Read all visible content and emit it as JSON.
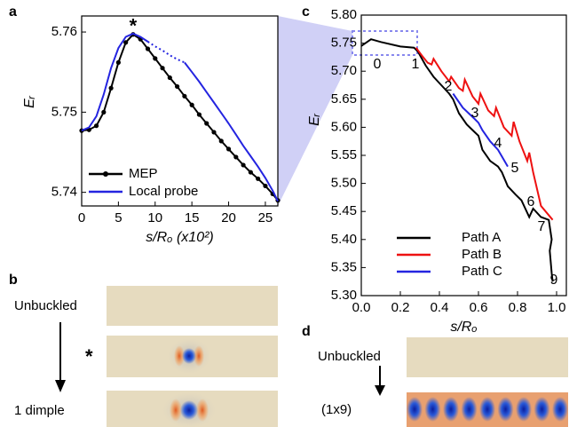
{
  "chart_data": [
    {
      "type": "line",
      "panel_label": "a",
      "xlabel": "s/Rₒ (x10²)",
      "ylabel": "Eᵣ",
      "annotation": "*",
      "xlim": [
        0,
        26.7
      ],
      "ylim": [
        5.7383,
        5.762
      ],
      "xticks": [
        0,
        5,
        10,
        15,
        20,
        25
      ],
      "yticks": [
        5.74,
        5.75,
        5.76
      ],
      "legend": "lower left",
      "x": [
        0,
        1,
        2,
        3,
        4,
        5,
        6,
        7,
        8,
        9,
        10,
        11,
        12,
        13,
        14,
        15,
        16,
        17,
        18,
        19,
        20,
        21,
        22,
        23,
        24,
        25,
        26,
        26.7
      ],
      "series": [
        {
          "name": "MEP",
          "color": "#000000",
          "marker": true,
          "values": [
            5.7477,
            5.7478,
            5.7483,
            5.75,
            5.753,
            5.7562,
            5.7587,
            5.7597,
            5.7591,
            5.7579,
            5.7567,
            5.7555,
            5.7543,
            5.7532,
            5.752,
            5.7509,
            5.7497,
            5.7486,
            5.7475,
            5.7464,
            5.7454,
            5.7444,
            5.7434,
            5.7425,
            5.7417,
            5.7408,
            5.7398,
            5.739
          ]
        },
        {
          "name": "Local probe",
          "color": "#2424e0",
          "values": [
            5.7477,
            5.7481,
            5.7495,
            5.7522,
            5.7555,
            5.758,
            5.7594,
            5.7598,
            5.7594,
            5.7588,
            null,
            null,
            null,
            null,
            5.7562,
            5.755,
            5.7538,
            5.7525,
            5.7512,
            5.7499,
            5.7486,
            5.7472,
            5.7458,
            5.7445,
            5.7432,
            5.7418,
            5.7402,
            5.7389
          ]
        },
        {
          "color": "#2424e0",
          "dash": "dotted",
          "values": [
            null,
            null,
            null,
            null,
            null,
            null,
            null,
            null,
            null,
            5.7588,
            5.7582,
            5.7577,
            5.7571,
            5.7566,
            5.7562,
            null,
            null,
            null,
            null,
            null,
            null,
            null,
            null,
            null,
            null,
            null,
            null,
            null
          ]
        }
      ]
    },
    {
      "type": "line",
      "panel_label": "c",
      "xlabel": "s/Rₒ",
      "ylabel": "Eᵣ",
      "xlim": [
        0,
        1.05
      ],
      "ylim": [
        5.3,
        5.8
      ],
      "xticks": [
        {
          "value": 0,
          "label": "0.0"
        },
        0.2,
        0.4,
        0.6,
        0.8,
        {
          "value": 1,
          "label": "1.0"
        }
      ],
      "yticks": [
        {
          "value": 5.3,
          "label": "5.30"
        },
        5.35,
        {
          "value": 5.4,
          "label": "5.40"
        },
        5.45,
        {
          "value": 5.5,
          "label": "5.50"
        },
        5.55,
        {
          "value": 5.6,
          "label": "5.60"
        },
        5.65,
        {
          "value": 5.7,
          "label": "5.70"
        },
        5.75,
        {
          "value": 5.8,
          "label": "5.80"
        }
      ],
      "legend": "lower left",
      "point_labels": [
        "0",
        "1",
        "2",
        "3",
        "4",
        "5",
        "6",
        "7",
        "9"
      ],
      "series": [
        {
          "name": "Path A",
          "color": "#000000",
          "x": [
            0,
            0.05,
            0.1,
            0.2,
            0.27,
            0.29,
            0.33,
            0.37,
            0.41,
            0.45,
            0.47,
            0.5,
            0.54,
            0.57,
            0.6,
            0.62,
            0.66,
            0.7,
            0.72,
            0.75,
            0.79,
            0.82,
            0.86,
            0.88,
            0.92,
            0.96,
            0.975,
            0.965,
            0.975,
            0.98
          ],
          "values": [
            5.745,
            5.757,
            5.752,
            5.744,
            5.742,
            5.735,
            5.71,
            5.69,
            5.675,
            5.66,
            5.65,
            5.625,
            5.605,
            5.595,
            5.585,
            5.56,
            5.54,
            5.53,
            5.52,
            5.495,
            5.48,
            5.47,
            5.44,
            5.455,
            5.44,
            5.435,
            5.4,
            5.38,
            5.34,
            5.325
          ]
        },
        {
          "name": "Path B",
          "color": "#ee1111",
          "x": [
            0.28,
            0.31,
            0.34,
            0.36,
            0.37,
            0.41,
            0.45,
            0.46,
            0.5,
            0.52,
            0.53,
            0.57,
            0.6,
            0.61,
            0.65,
            0.68,
            0.69,
            0.73,
            0.77,
            0.78,
            0.81,
            0.85,
            0.86,
            0.88,
            0.92,
            0.98
          ],
          "values": [
            5.742,
            5.728,
            5.715,
            5.712,
            5.722,
            5.7,
            5.682,
            5.69,
            5.67,
            5.665,
            5.685,
            5.655,
            5.642,
            5.66,
            5.63,
            5.62,
            5.635,
            5.6,
            5.585,
            5.61,
            5.575,
            5.54,
            5.555,
            5.52,
            5.46,
            5.435
          ]
        },
        {
          "name": "Path C",
          "color": "#2424e0",
          "x": [
            0.47,
            0.5,
            0.52,
            0.55,
            0.58,
            0.6,
            0.62,
            0.66,
            0.7,
            0.72,
            0.75
          ],
          "values": [
            5.66,
            5.645,
            5.635,
            5.625,
            5.615,
            5.608,
            5.595,
            5.575,
            5.56,
            5.548,
            5.53
          ]
        }
      ]
    }
  ],
  "panel_b": {
    "label": "b",
    "states": [
      "Unbuckled",
      "*",
      "1 dimple"
    ]
  },
  "panel_d": {
    "label": "d",
    "states": [
      "Unbuckled",
      "(1x9)"
    ]
  }
}
